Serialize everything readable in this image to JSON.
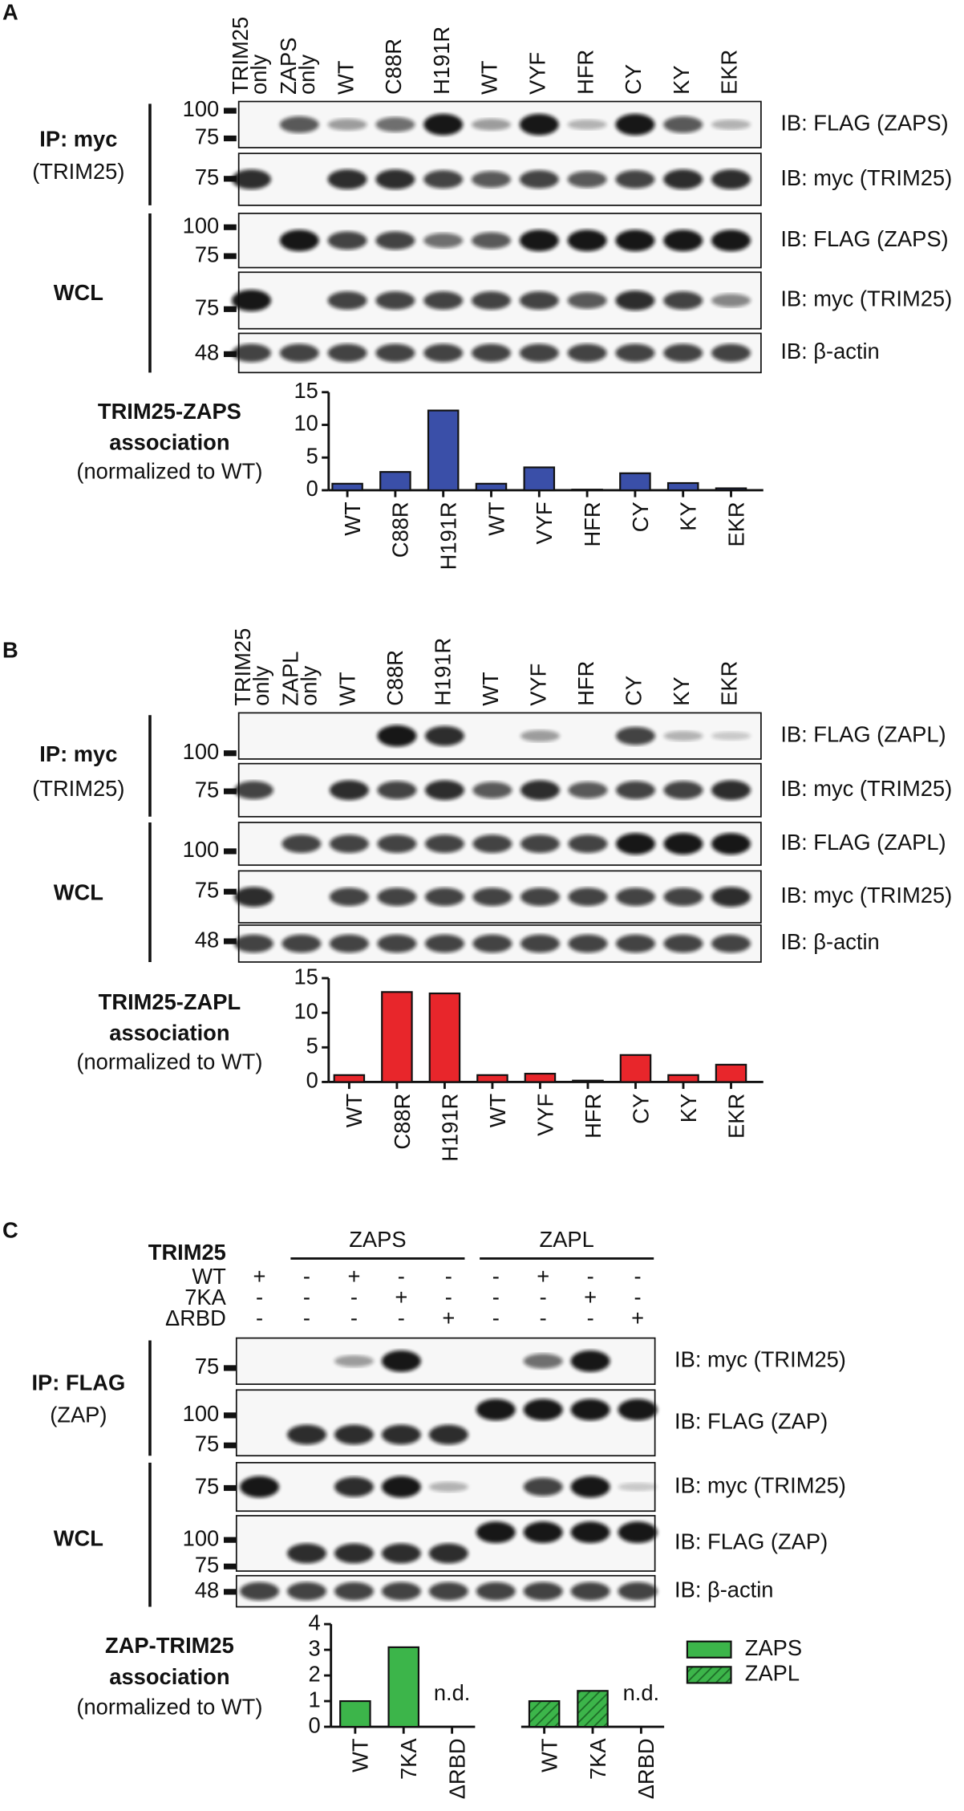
{
  "panels": [
    {
      "label": "A",
      "lanes": [
        "TRIM25 only",
        "ZAPS only",
        "WT",
        "C88R",
        "H191R",
        "WT",
        "VYF",
        "HFR",
        "CY",
        "KY",
        "EKR"
      ],
      "groups": [
        {
          "title": "IP: myc",
          "subtitle": "(TRIM25)",
          "blots": [
            {
              "markers": [
                100,
                75
              ],
              "probe": "IB: FLAG (ZAPS)"
            },
            {
              "markers": [
                75
              ],
              "probe": "IB: myc (TRIM25)"
            }
          ]
        },
        {
          "title": "WCL",
          "blots": [
            {
              "markers": [
                100,
                75
              ],
              "probe": "IB: FLAG (ZAPS)"
            },
            {
              "markers": [
                75
              ],
              "probe": "IB: myc (TRIM25)"
            },
            {
              "markers": [
                48
              ],
              "probe": "IB: β-actin"
            }
          ]
        }
      ],
      "chart_data": {
        "type": "bar",
        "ylabel": [
          "TRIM25-ZAPS",
          "association",
          "(normalized to WT)"
        ],
        "categories": [
          "WT",
          "C88R",
          "H191R",
          "WT",
          "VYF",
          "HFR",
          "CY",
          "KY",
          "EKR"
        ],
        "values": [
          1,
          2.8,
          12.2,
          1,
          3.5,
          0.1,
          2.6,
          1.1,
          0.3
        ],
        "color": "#3a4fa8",
        "ylim": [
          0,
          15
        ],
        "yticks": [
          0,
          5,
          10,
          15
        ]
      }
    },
    {
      "label": "B",
      "lanes": [
        "TRIM25 only",
        "ZAPL only",
        "WT",
        "C88R",
        "H191R",
        "WT",
        "VYF",
        "HFR",
        "CY",
        "KY",
        "EKR"
      ],
      "groups": [
        {
          "title": "IP: myc",
          "subtitle": "(TRIM25)",
          "blots": [
            {
              "markers": [
                100
              ],
              "probe": "IB: FLAG (ZAPL)"
            },
            {
              "markers": [
                75
              ],
              "probe": "IB: myc (TRIM25)"
            }
          ]
        },
        {
          "title": "WCL",
          "blots": [
            {
              "markers": [
                100
              ],
              "probe": "IB: FLAG (ZAPL)"
            },
            {
              "markers": [
                75
              ],
              "probe": "IB: myc (TRIM25)"
            },
            {
              "markers": [
                48
              ],
              "probe": "IB: β-actin"
            }
          ]
        }
      ],
      "chart_data": {
        "type": "bar",
        "ylabel": [
          "TRIM25-ZAPL",
          "association",
          "(normalized to WT)"
        ],
        "categories": [
          "WT",
          "C88R",
          "H191R",
          "WT",
          "VYF",
          "HFR",
          "CY",
          "KY",
          "EKR"
        ],
        "values": [
          1,
          13,
          12.8,
          1,
          1.2,
          0.2,
          3.9,
          1,
          2.5
        ],
        "color": "#e8262b",
        "ylim": [
          0,
          15
        ],
        "yticks": [
          0,
          5,
          10,
          15
        ]
      }
    },
    {
      "label": "C",
      "zap_groups": [
        "ZAPS",
        "ZAPL"
      ],
      "treatments": {
        "title": "TRIM25",
        "rows": [
          {
            "name": "WT",
            "signs": [
              "+",
              "-",
              "+",
              "-",
              "-",
              "-",
              "+",
              "-",
              "-"
            ]
          },
          {
            "name": "7KA",
            "signs": [
              "-",
              "-",
              "-",
              "+",
              "-",
              "-",
              "-",
              "+",
              "-"
            ]
          },
          {
            "name": "ΔRBD",
            "signs": [
              "-",
              "-",
              "-",
              "-",
              "+",
              "-",
              "-",
              "-",
              "+"
            ]
          }
        ]
      },
      "groups": [
        {
          "title": "IP: FLAG",
          "subtitle": "(ZAP)",
          "blots": [
            {
              "markers": [
                75
              ],
              "probe": "IB: myc (TRIM25)"
            },
            {
              "markers": [
                100,
                75
              ],
              "probe": "IB: FLAG (ZAP)"
            }
          ]
        },
        {
          "title": "WCL",
          "blots": [
            {
              "markers": [
                75
              ],
              "probe": "IB: myc (TRIM25)"
            },
            {
              "markers": [
                100,
                75
              ],
              "probe": "IB: FLAG (ZAP)"
            },
            {
              "markers": [
                48
              ],
              "probe": "IB: β-actin"
            }
          ]
        }
      ],
      "chart_data": {
        "type": "grouped-bar",
        "ylabel": [
          "ZAP-TRIM25",
          "association",
          "(normalized to WT)"
        ],
        "categories": [
          "WT",
          "7KA",
          "ΔRBD"
        ],
        "series": [
          {
            "name": "ZAPS",
            "color": "#3cb54a",
            "values": [
              1,
              3.1,
              null
            ]
          },
          {
            "name": "ZAPL",
            "color": "#3cb54a",
            "hatch": true,
            "values": [
              1,
              1.4,
              null
            ]
          }
        ],
        "missing_label": "n.d.",
        "ylim": [
          0,
          4
        ],
        "yticks": [
          0,
          1,
          2,
          3,
          4
        ]
      }
    }
  ]
}
